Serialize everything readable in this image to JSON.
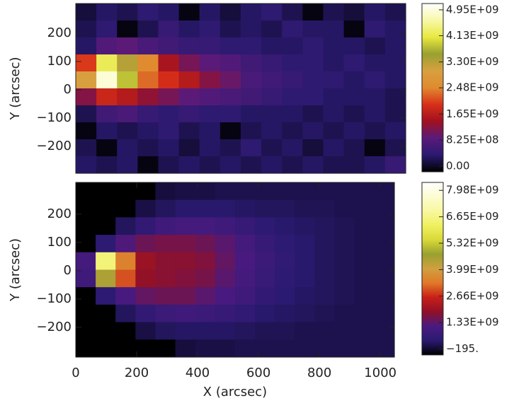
{
  "chart_data": [
    {
      "type": "heatmap",
      "ylabel": "Y (arcsec)",
      "xlim": [
        0,
        1084
      ],
      "ylim": [
        -295,
        305
      ],
      "yticks": [
        {
          "value": -200,
          "label": "−200"
        },
        {
          "value": -100,
          "label": "−100"
        },
        0,
        100,
        200
      ],
      "clim": [
        -180000000.0,
        5150000000.0
      ],
      "colormap": [
        "#000000",
        "#2a1a70",
        "#5a1a7a",
        "#a01020",
        "#d83018",
        "#e08a30",
        "#d8a040",
        "#98a030",
        "#e8e840",
        "#f8f8a8",
        "#ffffff"
      ],
      "colorbar_ticks": [
        {
          "value": 0,
          "label": "0.00"
        },
        {
          "value": 825000000.0,
          "label": "8.25E+08"
        },
        {
          "value": 1650000000.0,
          "label": "1.65E+09"
        },
        {
          "value": 2480000000.0,
          "label": "2.48E+09"
        },
        {
          "value": 3300000000.0,
          "label": "3.30E+09"
        },
        {
          "value": 4130000000.0,
          "label": "4.13E+09"
        },
        {
          "value": 4950000000.0,
          "label": "4.95E+09"
        }
      ],
      "z": [
        [
          100000000.0,
          300000000.0,
          200000000.0,
          400000000.0,
          300000000.0,
          -100000000.0,
          300000000.0,
          100000000.0,
          300000000.0,
          400000000.0,
          200000000.0,
          -100000000.0,
          200000000.0,
          100000000.0,
          300000000.0,
          200000000.0
        ],
        [
          200000000.0,
          400000000.0,
          -100000000.0,
          200000000.0,
          500000000.0,
          300000000.0,
          400000000.0,
          200000000.0,
          300000000.0,
          200000000.0,
          400000000.0,
          300000000.0,
          300000000.0,
          -100000000.0,
          400000000.0,
          300000000.0
        ],
        [
          300000000.0,
          800000000.0,
          900000000.0,
          700000000.0,
          600000000.0,
          500000000.0,
          500000000.0,
          400000000.0,
          400000000.0,
          300000000.0,
          300000000.0,
          400000000.0,
          300000000.0,
          300000000.0,
          200000000.0,
          300000000.0
        ],
        [
          2000000000.0,
          4200000000.0,
          3300000000.0,
          2500000000.0,
          1500000000.0,
          1100000000.0,
          900000000.0,
          800000000.0,
          600000000.0,
          500000000.0,
          400000000.0,
          400000000.0,
          300000000.0,
          400000000.0,
          300000000.0,
          300000000.0
        ],
        [
          3000000000.0,
          4900000000.0,
          3800000000.0,
          2300000000.0,
          1900000000.0,
          1600000000.0,
          1200000000.0,
          1000000000.0,
          700000000.0,
          600000000.0,
          500000000.0,
          400000000.0,
          400000000.0,
          300000000.0,
          400000000.0,
          300000000.0
        ],
        [
          1200000000.0,
          1800000000.0,
          1600000000.0,
          1300000000.0,
          1100000000.0,
          900000000.0,
          800000000.0,
          700000000.0,
          600000000.0,
          500000000.0,
          400000000.0,
          400000000.0,
          300000000.0,
          300000000.0,
          300000000.0,
          200000000.0
        ],
        [
          200000000.0,
          600000000.0,
          700000000.0,
          500000000.0,
          400000000.0,
          500000000.0,
          400000000.0,
          400000000.0,
          300000000.0,
          300000000.0,
          300000000.0,
          200000000.0,
          300000000.0,
          200000000.0,
          300000000.0,
          200000000.0
        ],
        [
          -100000000.0,
          300000000.0,
          200000000.0,
          300000000.0,
          400000000.0,
          200000000.0,
          300000000.0,
          -100000000.0,
          200000000.0,
          300000000.0,
          200000000.0,
          300000000.0,
          200000000.0,
          300000000.0,
          200000000.0,
          300000000.0
        ],
        [
          200000000.0,
          -100000000.0,
          300000000.0,
          200000000.0,
          300000000.0,
          100000000.0,
          300000000.0,
          200000000.0,
          400000000.0,
          200000000.0,
          300000000.0,
          100000000.0,
          300000000.0,
          200000000.0,
          -100000000.0,
          200000000.0
        ],
        [
          300000000.0,
          200000000.0,
          300000000.0,
          -100000000.0,
          200000000.0,
          300000000.0,
          200000000.0,
          300000000.0,
          200000000.0,
          300000000.0,
          200000000.0,
          300000000.0,
          200000000.0,
          200000000.0,
          300000000.0,
          500000000.0
        ]
      ]
    },
    {
      "type": "heatmap",
      "ylabel": "Y (arcsec)",
      "xlabel": "X (arcsec)",
      "xlim": [
        0,
        1046
      ],
      "ylim": [
        -305,
        312
      ],
      "xticks": [
        0,
        200,
        400,
        600,
        800,
        1000
      ],
      "yticks": [
        {
          "value": -200,
          "label": "−200"
        },
        {
          "value": -100,
          "label": "−100"
        },
        0,
        100,
        200
      ],
      "clim": [
        -300000000.0,
        8380000000.0
      ],
      "colormap": [
        "#000000",
        "#2a1a70",
        "#4a1a80",
        "#901028",
        "#c82018",
        "#e07828",
        "#d0a040",
        "#98a030",
        "#d8d838",
        "#f0f060",
        "#f8f8a0",
        "#fcfcd0",
        "#ffffff"
      ],
      "colorbar_ticks": [
        {
          "value": -195,
          "label": "−195."
        },
        {
          "value": 1330000000.0,
          "label": "1.33E+09"
        },
        {
          "value": 2660000000.0,
          "label": "2.66E+09"
        },
        {
          "value": 3990000000.0,
          "label": "3.99E+09"
        },
        {
          "value": 5320000000.0,
          "label": "5.32E+09"
        },
        {
          "value": 6650000000.0,
          "label": "6.65E+09"
        },
        {
          "value": 7980000000.0,
          "label": "7.98E+09"
        }
      ],
      "z": [
        [
          -300000000.0,
          -300000000.0,
          -300000000.0,
          -300000000.0,
          100000000.0,
          150000000.0,
          150000000.0,
          200000000.0,
          200000000.0,
          200000000.0,
          200000000.0,
          200000000.0,
          200000000.0,
          200000000.0,
          200000000.0,
          200000000.0
        ],
        [
          -300000000.0,
          -300000000.0,
          -300000000.0,
          150000000.0,
          300000000.0,
          400000000.0,
          400000000.0,
          400000000.0,
          350000000.0,
          300000000.0,
          300000000.0,
          250000000.0,
          250000000.0,
          200000000.0,
          200000000.0,
          200000000.0
        ],
        [
          -300000000.0,
          -300000000.0,
          300000000.0,
          600000000.0,
          900000000.0,
          1000000000.0,
          1000000000.0,
          900000000.0,
          700000000.0,
          500000000.0,
          400000000.0,
          350000000.0,
          300000000.0,
          250000000.0,
          200000000.0,
          200000000.0
        ],
        [
          -300000000.0,
          500000000.0,
          1200000000.0,
          1500000000.0,
          1600000000.0,
          1600000000.0,
          1500000000.0,
          1300000000.0,
          1000000000.0,
          700000000.0,
          500000000.0,
          400000000.0,
          300000000.0,
          250000000.0,
          200000000.0,
          200000000.0
        ],
        [
          1000000000.0,
          6500000000.0,
          3500000000.0,
          2000000000.0,
          1800000000.0,
          1800000000.0,
          1700000000.0,
          1400000000.0,
          1100000000.0,
          800000000.0,
          550000000.0,
          400000000.0,
          300000000.0,
          250000000.0,
          200000000.0,
          200000000.0
        ],
        [
          900000000.0,
          4500000000.0,
          3000000000.0,
          1900000000.0,
          1800000000.0,
          1700000000.0,
          1600000000.0,
          1300000000.0,
          1000000000.0,
          750000000.0,
          500000000.0,
          400000000.0,
          300000000.0,
          250000000.0,
          200000000.0,
          200000000.0
        ],
        [
          -300000000.0,
          500000000.0,
          1100000000.0,
          1400000000.0,
          1500000000.0,
          1500000000.0,
          1300000000.0,
          1100000000.0,
          900000000.0,
          600000000.0,
          450000000.0,
          350000000.0,
          300000000.0,
          250000000.0,
          200000000.0,
          200000000.0
        ],
        [
          -300000000.0,
          -300000000.0,
          300000000.0,
          600000000.0,
          800000000.0,
          900000000.0,
          800000000.0,
          700000000.0,
          550000000.0,
          400000000.0,
          350000000.0,
          300000000.0,
          250000000.0,
          200000000.0,
          200000000.0,
          200000000.0
        ],
        [
          -300000000.0,
          -300000000.0,
          -300000000.0,
          150000000.0,
          300000000.0,
          350000000.0,
          350000000.0,
          350000000.0,
          300000000.0,
          250000000.0,
          250000000.0,
          200000000.0,
          200000000.0,
          200000000.0,
          200000000.0,
          200000000.0
        ],
        [
          -300000000.0,
          -300000000.0,
          -300000000.0,
          -300000000.0,
          -300000000.0,
          100000000.0,
          150000000.0,
          150000000.0,
          200000000.0,
          200000000.0,
          200000000.0,
          200000000.0,
          200000000.0,
          200000000.0,
          200000000.0,
          200000000.0
        ]
      ]
    }
  ]
}
